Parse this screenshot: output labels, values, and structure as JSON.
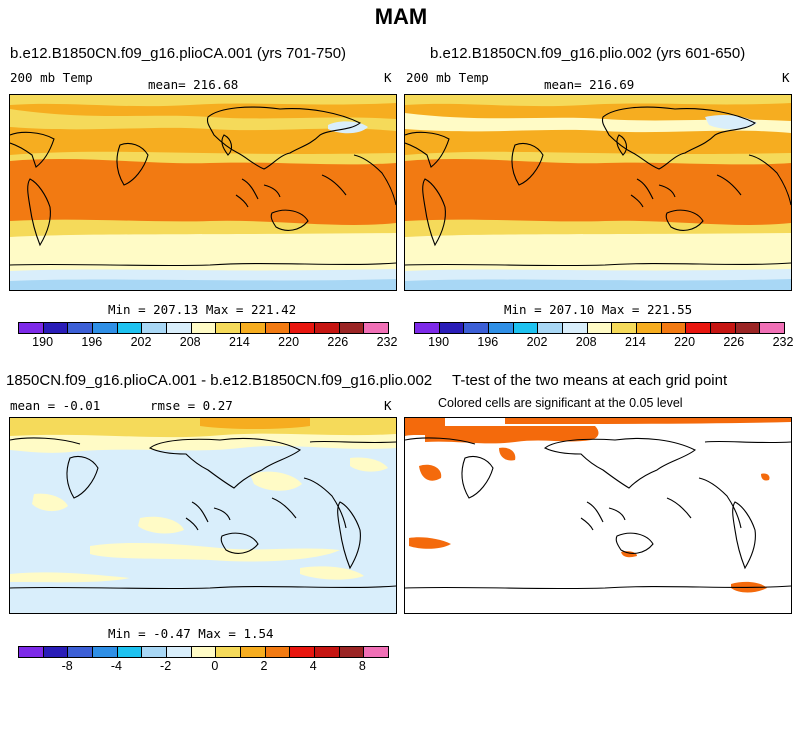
{
  "season": "MAM",
  "panels": {
    "p1": {
      "title": "b.e12.B1850CN.f09_g16.plioCA.001 (yrs 701-750)",
      "variable": "200 mb Temp",
      "mean": "mean= 216.68",
      "units": "K",
      "minmax": "Min = 207.13 Max = 221.42"
    },
    "p2": {
      "title": "b.e12.B1850CN.f09_g16.plio.002 (yrs 601-650)",
      "variable": "200 mb Temp",
      "mean": "mean= 216.69",
      "units": "K",
      "minmax": "Min = 207.10 Max = 221.55"
    },
    "p3": {
      "title": "1850CN.f09_g16.plioCA.001 - b.e12.B1850CN.f09_g16.plio.002",
      "mean": "mean =  -0.01",
      "rmse": "rmse =   0.27",
      "units": "K",
      "minmax": "Min =  -0.47 Max =   1.54"
    },
    "p4": {
      "title": "T-test of the two means at each grid point",
      "subtitle": "Colored cells are significant at the 0.05 level"
    }
  },
  "colorbar": {
    "colors": [
      "#7d2ae8",
      "#2a1db8",
      "#3c5fd6",
      "#2f8fe6",
      "#1ec2f0",
      "#a8d7f5",
      "#d9eefb",
      "#fffbc6",
      "#f5da5a",
      "#f6ad20",
      "#f27a12",
      "#e8160f",
      "#c51512",
      "#9b2525",
      "#f070b6"
    ],
    "temp_ticks": [
      "190",
      "196",
      "202",
      "208",
      "214",
      "220",
      "226",
      "232"
    ],
    "diff_ticks": [
      "-8",
      "-4",
      "-2",
      "0",
      "2",
      "4",
      "8"
    ]
  },
  "map_colors": {
    "orange_deep": "#f27a12",
    "orange": "#f6ad20",
    "yellow": "#f5da5a",
    "cream": "#fffbc6",
    "pale_blue": "#d9eefb",
    "light_blue": "#a8d7f5",
    "signif": "#f46a0c"
  }
}
